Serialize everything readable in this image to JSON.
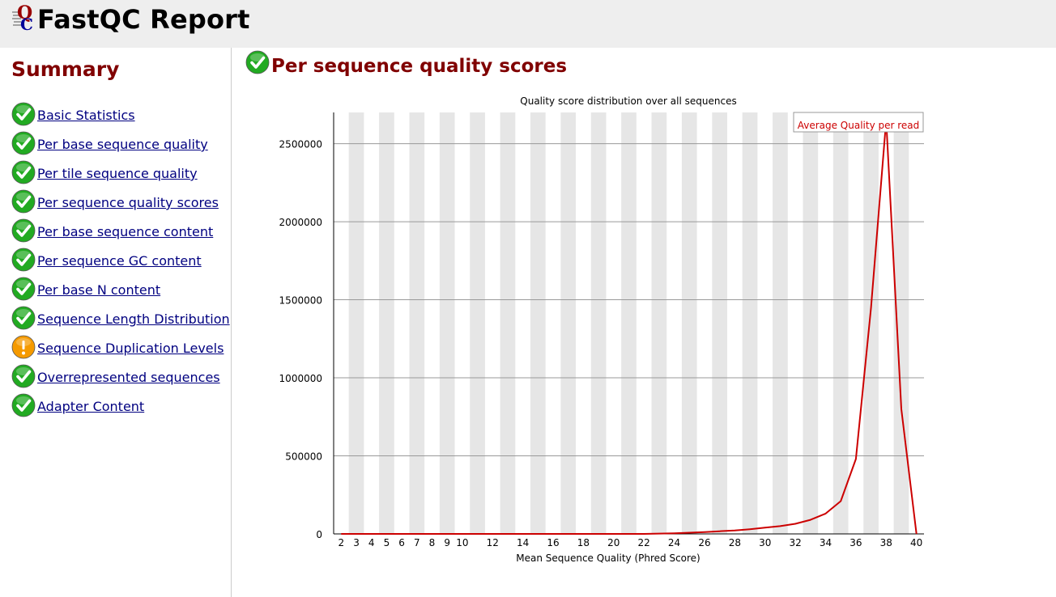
{
  "header": {
    "title": "FastQC Report"
  },
  "sidebar": {
    "title": "Summary",
    "items": [
      {
        "label": "Basic Statistics",
        "status": "pass"
      },
      {
        "label": "Per base sequence quality",
        "status": "pass"
      },
      {
        "label": "Per tile sequence quality",
        "status": "pass"
      },
      {
        "label": "Per sequence quality scores",
        "status": "pass"
      },
      {
        "label": "Per base sequence content",
        "status": "pass"
      },
      {
        "label": "Per sequence GC content",
        "status": "pass"
      },
      {
        "label": "Per base N content",
        "status": "pass"
      },
      {
        "label": "Sequence Length Distribution",
        "status": "pass"
      },
      {
        "label": "Sequence Duplication Levels",
        "status": "warn"
      },
      {
        "label": "Overrepresented sequences",
        "status": "pass"
      },
      {
        "label": "Adapter Content",
        "status": "pass"
      }
    ]
  },
  "main": {
    "title": "Per sequence quality scores",
    "status": "pass"
  },
  "colors": {
    "heading": "#800000",
    "link": "#000080",
    "line": "#cc0000",
    "band": "#e6e6e6",
    "pass": "#22aa22",
    "warn": "#f59a00"
  },
  "chart_data": {
    "type": "line",
    "title": "Quality score distribution over all sequences",
    "xlabel": "Mean Sequence Quality (Phred Score)",
    "ylabel": "",
    "x_ticks": [
      "2",
      "3",
      "4",
      "5",
      "6",
      "7",
      "8",
      "9",
      "10",
      "12",
      "14",
      "16",
      "18",
      "20",
      "22",
      "24",
      "26",
      "28",
      "30",
      "32",
      "34",
      "36",
      "38",
      "40"
    ],
    "xlim": [
      2,
      40
    ],
    "ylim": [
      0,
      2700000
    ],
    "y_ticks": [
      "0",
      "500000",
      "1000000",
      "1500000",
      "2000000",
      "2500000"
    ],
    "grid": true,
    "legend": "top-right",
    "series": [
      {
        "name": "Average Quality per read",
        "x": [
          2,
          3,
          4,
          5,
          6,
          7,
          8,
          9,
          10,
          11,
          12,
          13,
          14,
          15,
          16,
          17,
          18,
          19,
          20,
          21,
          22,
          23,
          24,
          25,
          26,
          27,
          28,
          29,
          30,
          31,
          32,
          33,
          34,
          35,
          36,
          37,
          38,
          39,
          40
        ],
        "values": [
          0,
          0,
          0,
          0,
          0,
          0,
          0,
          0,
          0,
          0,
          0,
          0,
          0,
          0,
          0,
          0,
          0,
          0,
          0,
          0,
          0,
          2000,
          4000,
          8000,
          12000,
          17000,
          22000,
          30000,
          40000,
          50000,
          65000,
          90000,
          130000,
          210000,
          480000,
          1450000,
          2650000,
          800000,
          0
        ]
      }
    ]
  }
}
